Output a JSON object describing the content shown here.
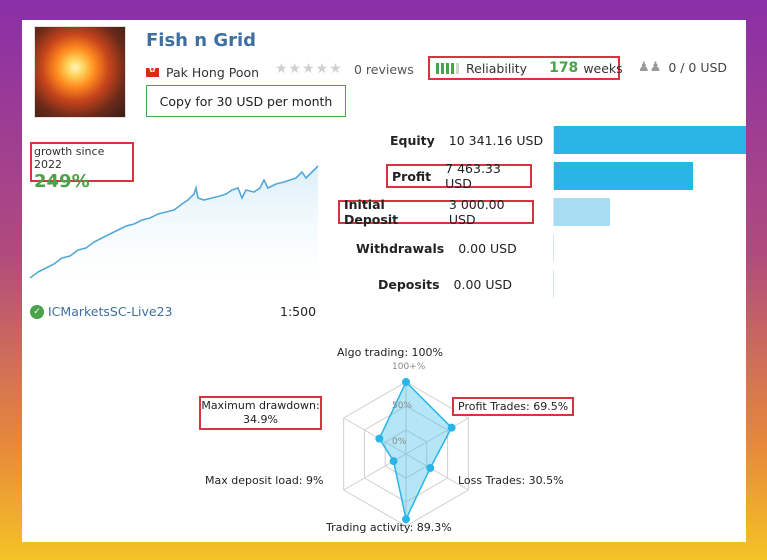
{
  "signal": {
    "title": "Fish n Grid",
    "author": "Pak Hong Poon",
    "reviews": "0 reviews",
    "reliability_label": "Reliability",
    "reliability_weeks": "178",
    "weeks_label": "weeks",
    "subscribers": "0 / 0 USD",
    "copy_button": "Copy for 30 USD per month"
  },
  "growth": {
    "label": "growth since 2022",
    "value": "249%"
  },
  "account": {
    "broker": "ICMarketsSC-Live23",
    "leverage": "1:500"
  },
  "financials": [
    {
      "label": "Equity",
      "value": "10 341.16 USD",
      "amount": 10341.16,
      "highlighted": false
    },
    {
      "label": "Profit",
      "value": "7 463.33 USD",
      "amount": 7463.33,
      "highlighted": true
    },
    {
      "label": "Initial Deposit",
      "value": "3 000.00 USD",
      "amount": 3000.0,
      "highlighted": true
    },
    {
      "label": "Withdrawals",
      "value": "0.00 USD",
      "amount": 0,
      "highlighted": false
    },
    {
      "label": "Deposits",
      "value": "0.00 USD",
      "amount": 0,
      "highlighted": false
    }
  ],
  "radar": {
    "algo_trading": "Algo trading: 100%",
    "profit_trades": "Profit Trades: 69.5%",
    "loss_trades": "Loss Trades: 30.5%",
    "trading_activity": "Trading activity: 89.3%",
    "max_deposit_load": "Max deposit load: 9%",
    "max_drawdown_label": "Maximum drawdown:",
    "max_drawdown_value": "34.9%",
    "scale_100": "100+%",
    "scale_50": "50%",
    "scale_0": "0%",
    "values": [
      100,
      69.5,
      30.5,
      89.3,
      9,
      34.9
    ]
  },
  "colors": {
    "accent_blue": "#29b6e6",
    "light_blue": "#a8dcf2",
    "green": "#4aa24a",
    "highlight_red": "#d9333f",
    "title_blue": "#3f6f9e"
  }
}
